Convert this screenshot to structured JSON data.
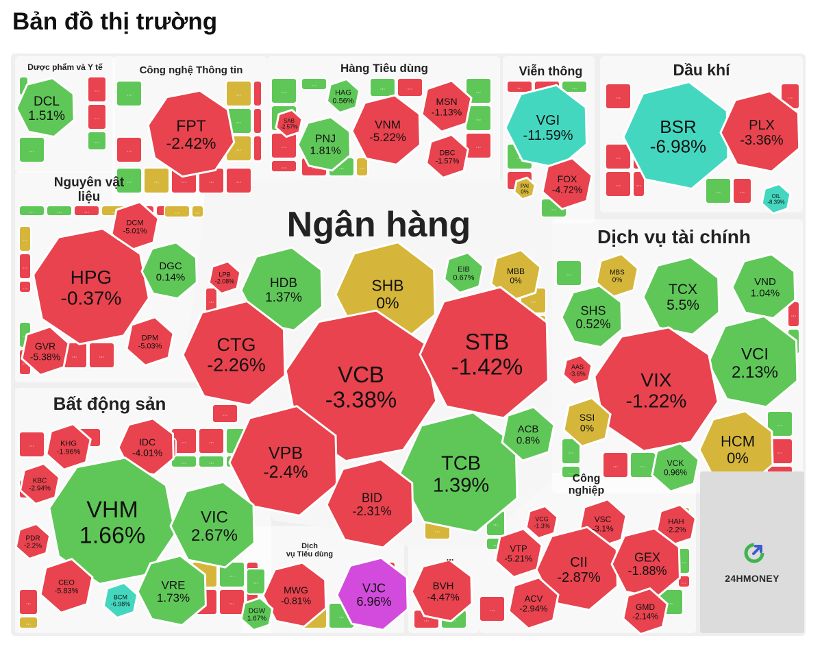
{
  "page": {
    "title": "Bản đồ thị trường"
  },
  "logo": {
    "text": "24HMONEY",
    "icon": "24hmoney-logo-icon"
  },
  "colors": {
    "down": "#e8434e",
    "up": "#5fc758",
    "flat": "#d5b63b",
    "floor": "#44d7c0",
    "ceiling": "#d24bdc",
    "sector_bg": "#efefef"
  },
  "legend_meaning": {
    "down": "price decreased",
    "up": "price increased",
    "flat": "unchanged (0%)",
    "floor": "floor price",
    "ceiling": "ceiling price"
  },
  "chart_data": {
    "type": "heatmap",
    "title": "Bản đồ thị trường",
    "sectors": [
      {
        "name": "Dược phẩm và Y tế",
        "stocks": [
          {
            "ticker": "DCL",
            "change": "1.51%"
          }
        ]
      },
      {
        "name": "Công nghệ Thông tin",
        "stocks": [
          {
            "ticker": "FPT",
            "change": "-2.42%"
          }
        ]
      },
      {
        "name": "Hàng Tiêu dùng",
        "stocks": [
          {
            "ticker": "HAG",
            "change": "0.56%"
          },
          {
            "ticker": "MSN",
            "change": "-1.13%"
          },
          {
            "ticker": "SAB",
            "change": "-2.57%"
          },
          {
            "ticker": "VNM",
            "change": "-5.22%"
          },
          {
            "ticker": "PNJ",
            "change": "1.81%"
          },
          {
            "ticker": "DBC",
            "change": "-1.57%"
          }
        ]
      },
      {
        "name": "Viễn thông",
        "stocks": [
          {
            "ticker": "VGI",
            "change": "-11.59%"
          },
          {
            "ticker": "PAI",
            "change": "0%"
          },
          {
            "ticker": "FOX",
            "change": "-4.72%"
          }
        ]
      },
      {
        "name": "Dầu khí",
        "stocks": [
          {
            "ticker": "BSR",
            "change": "-6.98%"
          },
          {
            "ticker": "PLX",
            "change": "-3.36%"
          },
          {
            "ticker": "OIL",
            "change": "-8.39%"
          }
        ]
      },
      {
        "name": "Nguyên vật liệu",
        "stocks": [
          {
            "ticker": "DCM",
            "change": "-5.01%"
          },
          {
            "ticker": "HPG",
            "change": "-0.37%"
          },
          {
            "ticker": "DGC",
            "change": "0.14%"
          },
          {
            "ticker": "GVR",
            "change": "-5.38%"
          },
          {
            "ticker": "DPM",
            "change": "-5.03%"
          }
        ]
      },
      {
        "name": "Ngân hàng",
        "stocks": [
          {
            "ticker": "LPB",
            "change": "-2.08%"
          },
          {
            "ticker": "HDB",
            "change": "1.37%"
          },
          {
            "ticker": "SHB",
            "change": "0%"
          },
          {
            "ticker": "EIB",
            "change": "0.67%"
          },
          {
            "ticker": "MBB",
            "change": "0%"
          },
          {
            "ticker": "CTG",
            "change": "-2.26%"
          },
          {
            "ticker": "VCB",
            "change": "-3.38%"
          },
          {
            "ticker": "STB",
            "change": "-1.42%"
          },
          {
            "ticker": "VPB",
            "change": "-2.4%"
          },
          {
            "ticker": "TCB",
            "change": "1.39%"
          },
          {
            "ticker": "ACB",
            "change": "0.8%"
          },
          {
            "ticker": "BID",
            "change": "-2.31%"
          }
        ]
      },
      {
        "name": "Dịch vụ tài chính",
        "stocks": [
          {
            "ticker": "MBS",
            "change": "0%"
          },
          {
            "ticker": "TCX",
            "change": "5.5%"
          },
          {
            "ticker": "VND",
            "change": "1.04%"
          },
          {
            "ticker": "SHS",
            "change": "0.52%"
          },
          {
            "ticker": "VCI",
            "change": "2.13%"
          },
          {
            "ticker": "AAS",
            "change": "-3.6%"
          },
          {
            "ticker": "VIX",
            "change": "-1.22%"
          },
          {
            "ticker": "SSI",
            "change": "0%"
          },
          {
            "ticker": "HCM",
            "change": "0%"
          },
          {
            "ticker": "VCK",
            "change": "0.96%"
          }
        ]
      },
      {
        "name": "Bất động sản",
        "stocks": [
          {
            "ticker": "KHG",
            "change": "-1.96%"
          },
          {
            "ticker": "IDC",
            "change": "-4.01%"
          },
          {
            "ticker": "KBC",
            "change": "-2.94%"
          },
          {
            "ticker": "VHM",
            "change": "1.66%"
          },
          {
            "ticker": "VIC",
            "change": "2.67%"
          },
          {
            "ticker": "PDR",
            "change": "-2.2%"
          },
          {
            "ticker": "CEO",
            "change": "-5.83%"
          },
          {
            "ticker": "BCM",
            "change": "-6.98%"
          },
          {
            "ticker": "VRE",
            "change": "1.73%"
          }
        ]
      },
      {
        "name": "Dịch vụ Tiêu dùng",
        "stocks": [
          {
            "ticker": "MWG",
            "change": "-0.81%"
          },
          {
            "ticker": "VJC",
            "change": "6.96%"
          },
          {
            "ticker": "DGW",
            "change": "1.67%"
          }
        ]
      },
      {
        "name": "...",
        "stocks": [
          {
            "ticker": "BVH",
            "change": "-4.47%"
          }
        ]
      },
      {
        "name": "Công nghiệp",
        "stocks": [
          {
            "ticker": "VCG",
            "change": "-1.3%"
          },
          {
            "ticker": "VSC",
            "change": "-3.1%"
          },
          {
            "ticker": "HAH",
            "change": "-2.2%"
          },
          {
            "ticker": "VTP",
            "change": "-5.21%"
          },
          {
            "ticker": "CII",
            "change": "-2.87%"
          },
          {
            "ticker": "GEX",
            "change": "-1.88%"
          },
          {
            "ticker": "ACV",
            "change": "-2.94%"
          },
          {
            "ticker": "GMD",
            "change": "-2.14%"
          }
        ]
      }
    ],
    "small_cell_label": "..."
  }
}
